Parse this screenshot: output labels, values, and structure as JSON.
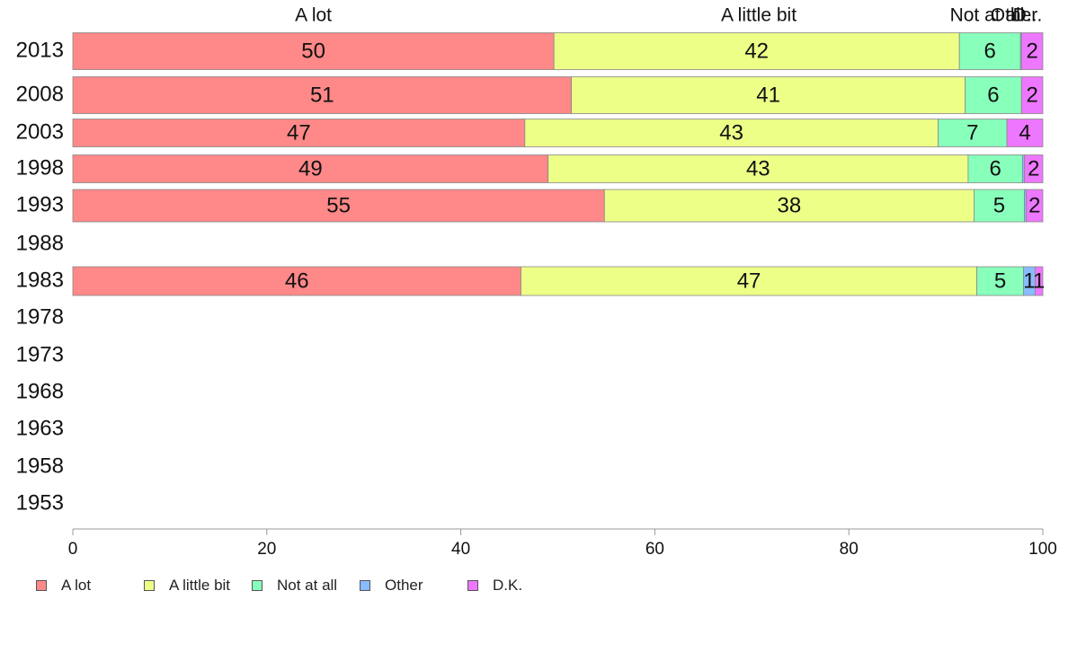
{
  "chart_data": {
    "type": "bar",
    "orientation": "horizontal",
    "stacked": true,
    "categories": [
      "2013",
      "2008",
      "2003",
      "1998",
      "1993",
      "1988",
      "1983",
      "1978",
      "1973",
      "1968",
      "1963",
      "1958",
      "1953"
    ],
    "series": [
      {
        "name": "A lot",
        "color": "#ff8888",
        "values": [
          49.6,
          51.4,
          46.6,
          49.0,
          54.8,
          null,
          46.2,
          null,
          null,
          null,
          null,
          null,
          null
        ]
      },
      {
        "name": "A little bit",
        "color": "#eeff88",
        "values": [
          41.8,
          40.6,
          42.6,
          43.3,
          38.1,
          null,
          47.0,
          null,
          null,
          null,
          null,
          null,
          null
        ]
      },
      {
        "name": "Not at all",
        "color": "#88ffbb",
        "values": [
          6.3,
          5.8,
          7.1,
          5.6,
          5.2,
          null,
          4.8,
          null,
          null,
          null,
          null,
          null,
          null
        ]
      },
      {
        "name": "Other",
        "color": "#88bbff",
        "values": [
          0.1,
          0,
          0,
          0.2,
          0.2,
          null,
          1.2,
          null,
          null,
          null,
          null,
          null,
          null
        ]
      },
      {
        "name": "D.K.",
        "color": "#ee77ff",
        "values": [
          2.2,
          2.2,
          3.7,
          1.9,
          1.7,
          null,
          0.8,
          null,
          null,
          null,
          null,
          null,
          null
        ]
      }
    ],
    "data_labels": [
      [
        "50",
        "42",
        "6",
        "",
        "2"
      ],
      [
        "51",
        "41",
        "6",
        "",
        "2"
      ],
      [
        "47",
        "43",
        "7",
        "",
        "4"
      ],
      [
        "49",
        "43",
        "6",
        "",
        "2"
      ],
      [
        "55",
        "38",
        "5",
        "",
        "2"
      ],
      [],
      [
        "46",
        "47",
        "5",
        "1",
        "1"
      ],
      [],
      [],
      [],
      [],
      [],
      []
    ],
    "column_headers": [
      "A lot",
      "A little bit",
      "Not at all",
      "Other",
      "D..."
    ],
    "xlim": [
      0,
      100
    ],
    "xticks": [
      "0",
      "20",
      "40",
      "60",
      "80",
      "100"
    ],
    "grid": false,
    "legend_position": "bottom-left"
  }
}
